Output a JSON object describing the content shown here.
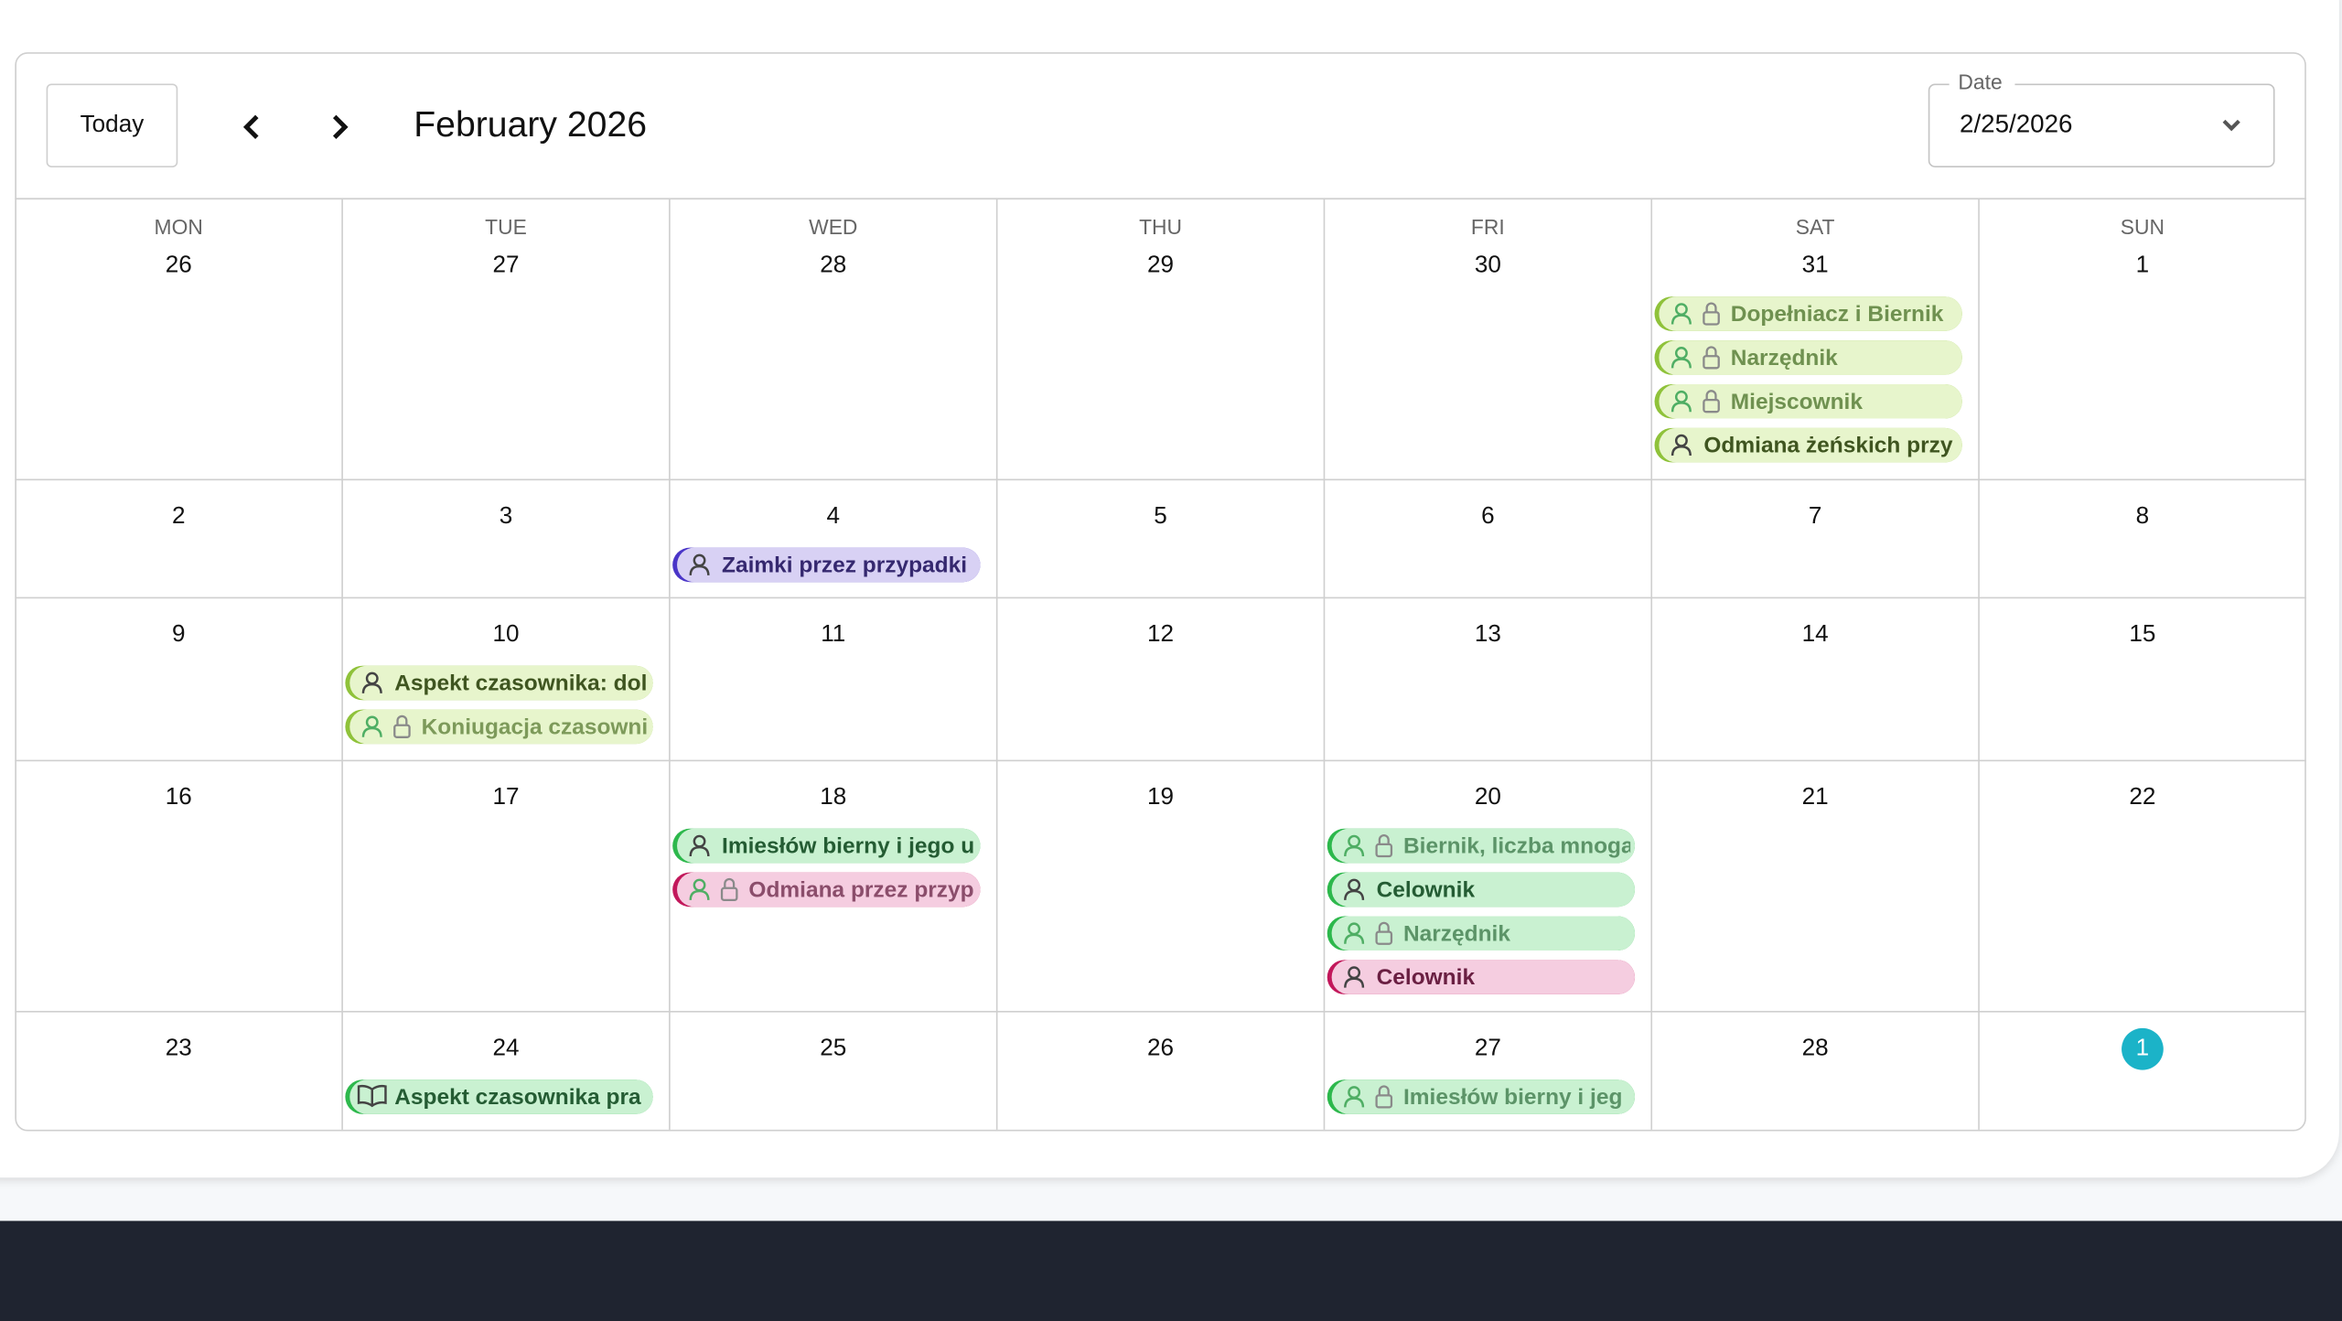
{
  "header": {
    "today_button": "Today",
    "month_title": "February 2026",
    "date_field": {
      "label": "Date",
      "value": "2/25/2026"
    }
  },
  "weekdays": [
    "MON",
    "TUE",
    "WED",
    "THU",
    "FRI",
    "SAT",
    "SUN"
  ],
  "weeks": [
    [
      {
        "date": "26",
        "events": []
      },
      {
        "date": "27",
        "events": []
      },
      {
        "date": "28",
        "events": []
      },
      {
        "date": "29",
        "events": []
      },
      {
        "date": "30",
        "events": []
      },
      {
        "date": "31",
        "events": [
          {
            "title": "Dopełniacz i Biernik",
            "accent": "#8fc23a",
            "background": "#e7f5cc",
            "text_color": "#6f9150",
            "icon": "person",
            "locked": true
          },
          {
            "title": "Narzędnik",
            "accent": "#8fc23a",
            "background": "#e7f5cc",
            "text_color": "#6f9150",
            "icon": "person",
            "locked": true
          },
          {
            "title": "Miejscownik",
            "accent": "#8fc23a",
            "background": "#e7f5cc",
            "text_color": "#6f9150",
            "icon": "person",
            "locked": true
          },
          {
            "title": "Odmiana żeńskich przy",
            "accent": "#8fc23a",
            "background": "#e7f5cc",
            "text_color": "#3f5520",
            "icon": "person",
            "locked": false
          }
        ]
      },
      {
        "date": "1",
        "events": []
      }
    ],
    [
      {
        "date": "2",
        "events": []
      },
      {
        "date": "3",
        "events": []
      },
      {
        "date": "4",
        "events": [
          {
            "title": "Zaimki przez przypadki",
            "accent": "#4a35c8",
            "background": "#d8d1f4",
            "text_color": "#35286f",
            "icon": "person",
            "locked": false
          }
        ]
      },
      {
        "date": "5",
        "events": []
      },
      {
        "date": "6",
        "events": []
      },
      {
        "date": "7",
        "events": []
      },
      {
        "date": "8",
        "events": []
      }
    ],
    [
      {
        "date": "9",
        "events": []
      },
      {
        "date": "10",
        "events": [
          {
            "title": "Aspekt czasownika: dol",
            "accent": "#8fc23a",
            "background": "#e7f5cc",
            "text_color": "#3f5520",
            "icon": "person",
            "locked": false
          },
          {
            "title": "Koniugacja czasowni",
            "accent": "#8fc23a",
            "background": "#e7f5cc",
            "text_color": "#7d9a5a",
            "icon": "person",
            "locked": true
          }
        ]
      },
      {
        "date": "11",
        "events": []
      },
      {
        "date": "12",
        "events": []
      },
      {
        "date": "13",
        "events": []
      },
      {
        "date": "14",
        "events": []
      },
      {
        "date": "15",
        "events": []
      }
    ],
    [
      {
        "date": "16",
        "events": []
      },
      {
        "date": "17",
        "events": []
      },
      {
        "date": "18",
        "events": [
          {
            "title": "Imiesłów bierny i jego u",
            "accent": "#2db84c",
            "background": "#c9f1d1",
            "text_color": "#245c33",
            "icon": "person",
            "locked": false
          },
          {
            "title": "Odmiana przez przyp",
            "accent": "#c2185b",
            "background": "#f5cde0",
            "text_color": "#8b4d6b",
            "icon": "person",
            "locked": true
          }
        ]
      },
      {
        "date": "19",
        "events": []
      },
      {
        "date": "20",
        "events": [
          {
            "title": "Biernik, liczba mnoga",
            "accent": "#2db84c",
            "background": "#c9f1d1",
            "text_color": "#5c9468",
            "icon": "person",
            "locked": true
          },
          {
            "title": "Celownik",
            "accent": "#2db84c",
            "background": "#c9f1d1",
            "text_color": "#245c33",
            "icon": "person",
            "locked": false
          },
          {
            "title": "Narzędnik",
            "accent": "#2db84c",
            "background": "#c9f1d1",
            "text_color": "#5c9468",
            "icon": "person",
            "locked": true
          },
          {
            "title": "Celownik",
            "accent": "#c2185b",
            "background": "#f5cde0",
            "text_color": "#6a1f42",
            "icon": "person",
            "locked": false
          }
        ]
      },
      {
        "date": "21",
        "events": []
      },
      {
        "date": "22",
        "events": []
      }
    ],
    [
      {
        "date": "23",
        "events": []
      },
      {
        "date": "24",
        "events": [
          {
            "title": "Aspekt czasownika pra",
            "accent": "#2db84c",
            "background": "#c9f1d1",
            "text_color": "#245c33",
            "icon": "book",
            "locked": false
          }
        ]
      },
      {
        "date": "25",
        "events": []
      },
      {
        "date": "26",
        "events": []
      },
      {
        "date": "27",
        "events": [
          {
            "title": "Imiesłów bierny i jeg",
            "accent": "#2db84c",
            "background": "#c9f1d1",
            "text_color": "#5c9468",
            "icon": "person",
            "locked": true
          }
        ]
      },
      {
        "date": "28",
        "events": []
      },
      {
        "date": "1",
        "today": true,
        "events": []
      }
    ]
  ]
}
